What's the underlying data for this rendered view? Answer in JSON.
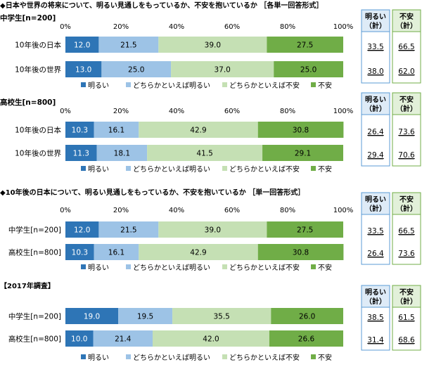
{
  "colors": {
    "very_bright": "#2e75b6",
    "somewhat_bright": "#9dc3e6",
    "somewhat_anxious": "#c5e0b4",
    "anxious": "#70ad47",
    "bright_box_bg": "#deebf7",
    "bright_box_border": "#5b9bd5",
    "anxious_box_bg": "#e2f0d9",
    "anxious_box_border": "#70ad47"
  },
  "legend": [
    "明るい",
    "どちらかといえば明るい",
    "どちらかといえば不安",
    "不安"
  ],
  "summary_headers": {
    "bright": "明るい\n（計）",
    "anxious": "不安\n（計）"
  },
  "chart_data": [
    {
      "type": "bar",
      "stacked": true,
      "orientation": "horizontal",
      "title": "◆日本や世界の将来について、明るい見通しをもっているか、不安を抱いているか ［各単一回答形式］",
      "subtitle": "中学生[n=200]",
      "categories": [
        "10年後の日本",
        "10年後の世界"
      ],
      "series": [
        {
          "name": "明るい",
          "values": [
            12.0,
            13.0
          ]
        },
        {
          "name": "どちらかといえば明るい",
          "values": [
            21.5,
            25.0
          ]
        },
        {
          "name": "どちらかといえば不安",
          "values": [
            39.0,
            37.0
          ]
        },
        {
          "name": "不安",
          "values": [
            27.5,
            25.0
          ]
        }
      ],
      "totals_bright": [
        "33.5",
        "38.0"
      ],
      "totals_anxious": [
        "66.5",
        "62.0"
      ],
      "xlim": [
        0,
        100
      ],
      "ticks": [
        "0%",
        "20%",
        "40%",
        "60%",
        "80%",
        "100%"
      ],
      "legend_position": "bottom"
    },
    {
      "type": "bar",
      "stacked": true,
      "orientation": "horizontal",
      "title": "",
      "subtitle": "高校生[n=800]",
      "categories": [
        "10年後の日本",
        "10年後の世界"
      ],
      "series": [
        {
          "name": "明るい",
          "values": [
            10.3,
            11.3
          ]
        },
        {
          "name": "どちらかといえば明るい",
          "values": [
            16.1,
            18.1
          ]
        },
        {
          "name": "どちらかといえば不安",
          "values": [
            42.9,
            41.5
          ]
        },
        {
          "name": "不安",
          "values": [
            30.8,
            29.1
          ]
        }
      ],
      "totals_bright": [
        "26.4",
        "29.4"
      ],
      "totals_anxious": [
        "73.6",
        "70.6"
      ],
      "xlim": [
        0,
        100
      ],
      "ticks": [
        "0%",
        "20%",
        "40%",
        "60%",
        "80%",
        "100%"
      ],
      "legend_position": "bottom"
    },
    {
      "type": "bar",
      "stacked": true,
      "orientation": "horizontal",
      "title": "◆10年後の日本について、明るい見通しをもっているか、不安を抱いているか ［単一回答形式］",
      "subtitle": "",
      "categories": [
        "中学生[n=200]",
        "高校生[n=800]"
      ],
      "series": [
        {
          "name": "明るい",
          "values": [
            12.0,
            10.3
          ]
        },
        {
          "name": "どちらかといえば明るい",
          "values": [
            21.5,
            16.1
          ]
        },
        {
          "name": "どちらかといえば不安",
          "values": [
            39.0,
            42.9
          ]
        },
        {
          "name": "不安",
          "values": [
            27.5,
            30.8
          ]
        }
      ],
      "totals_bright": [
        "33.5",
        "26.4"
      ],
      "totals_anxious": [
        "66.5",
        "73.6"
      ],
      "xlim": [
        0,
        100
      ],
      "ticks": [
        "0%",
        "20%",
        "40%",
        "60%",
        "80%",
        "100%"
      ],
      "legend_position": "bottom"
    },
    {
      "type": "bar",
      "stacked": true,
      "orientation": "horizontal",
      "title": "【2017年調査】",
      "subtitle": "",
      "categories": [
        "中学生[n=200]",
        "高校生[n=800]"
      ],
      "series": [
        {
          "name": "明るい",
          "values": [
            19.0,
            10.0
          ]
        },
        {
          "name": "どちらかといえば明るい",
          "values": [
            19.5,
            21.4
          ]
        },
        {
          "name": "どちらかといえば不安",
          "values": [
            35.5,
            42.0
          ]
        },
        {
          "name": "不安",
          "values": [
            26.0,
            26.6
          ]
        }
      ],
      "totals_bright": [
        "38.5",
        "31.4"
      ],
      "totals_anxious": [
        "61.5",
        "68.6"
      ],
      "xlim": [
        0,
        100
      ],
      "ticks": [],
      "legend_position": "bottom"
    }
  ]
}
